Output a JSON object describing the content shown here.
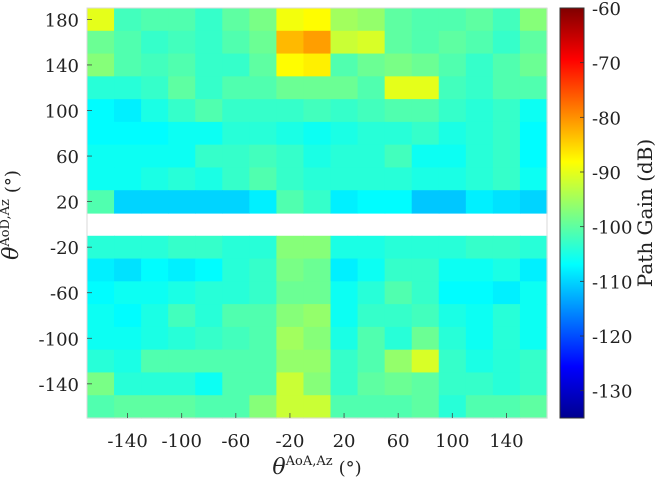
{
  "chart_data": {
    "type": "heatmap",
    "title": "",
    "xlabel": {
      "symbol": "θ",
      "superscript": "AoA,Az",
      "unit": "(°)"
    },
    "ylabel": {
      "symbol": "θ",
      "superscript": "AoD,Az",
      "unit": "(°)"
    },
    "x_ticks": [
      "-140",
      "-100",
      "-60",
      "-20",
      "20",
      "60",
      "100",
      "140"
    ],
    "y_ticks": [
      "180",
      "140",
      "100",
      "60",
      "20",
      "-20",
      "-60",
      "-100",
      "-140"
    ],
    "x_tick_values": [
      -140,
      -100,
      -60,
      -20,
      20,
      60,
      100,
      140
    ],
    "y_tick_values": [
      180,
      140,
      100,
      60,
      20,
      -20,
      -60,
      -100,
      -140
    ],
    "xlim": [
      -170,
      170
    ],
    "ylim": [
      -170,
      190
    ],
    "x_bin_width": 20,
    "x_bin_start": -170,
    "y_bin_width": 20,
    "y_bin_start": 190,
    "colormap": "jet",
    "colorbar": {
      "label": "Path Gain (dB)",
      "range": [
        -135,
        -60
      ],
      "ticks": [
        "-60",
        "-70",
        "-80",
        "-90",
        "-100",
        "-110",
        "-120",
        "-130"
      ],
      "tick_values": [
        -60,
        -70,
        -80,
        -90,
        -100,
        -110,
        -120,
        -130
      ]
    },
    "missing_rows_note": "",
    "rows": [
      [
        -90,
        -102,
        -101,
        -101,
        -103,
        -100,
        -98,
        -89,
        -88,
        -95,
        -96,
        -100,
        -101,
        -101,
        -100,
        -102,
        -97
      ],
      [
        -99,
        -101,
        -103,
        -102,
        -103,
        -101,
        -99,
        -83,
        -81,
        -92,
        -91,
        -100,
        -101,
        -100,
        -101,
        -103,
        -100
      ],
      [
        -97,
        -101,
        -102,
        -101,
        -103,
        -103,
        -100,
        -88,
        -87,
        -101,
        -99,
        -98,
        -99,
        -101,
        -103,
        -101,
        -99
      ],
      [
        -104,
        -104,
        -103,
        -100,
        -103,
        -101,
        -101,
        -99,
        -99,
        -99,
        -101,
        -90,
        -90,
        -102,
        -103,
        -101,
        -101
      ],
      [
        -107,
        -108,
        -105,
        -103,
        -101,
        -103,
        -103,
        -103,
        -102,
        -103,
        -102,
        -101,
        -101,
        -103,
        -104,
        -103,
        -106
      ],
      [
        -107,
        -107,
        -107,
        -106,
        -106,
        -104,
        -104,
        -105,
        -106,
        -105,
        -104,
        -104,
        -103,
        -105,
        -104,
        -103,
        -107
      ],
      [
        -106,
        -106,
        -106,
        -106,
        -103,
        -103,
        -102,
        -103,
        -105,
        -104,
        -104,
        -102,
        -106,
        -106,
        -104,
        -103,
        -107
      ],
      [
        -106,
        -106,
        -105,
        -104,
        -105,
        -103,
        -101,
        -103,
        -104,
        -104,
        -104,
        -104,
        -105,
        -105,
        -104,
        -103,
        -106
      ],
      [
        -101,
        -110,
        -110,
        -110,
        -110,
        -110,
        -108,
        -101,
        -103,
        -108,
        -107,
        -107,
        -111,
        -111,
        -108,
        -109,
        -110
      ],
      [
        null,
        null,
        null,
        null,
        null,
        null,
        null,
        null,
        null,
        null,
        null,
        null,
        null,
        null,
        null,
        null,
        null
      ],
      [
        -104,
        -104,
        -104,
        -103,
        -103,
        -104,
        -104,
        -97,
        -97,
        -105,
        -105,
        -104,
        -104,
        -104,
        -103,
        -103,
        -104
      ],
      [
        -108,
        -109,
        -107,
        -108,
        -107,
        -104,
        -103,
        -98,
        -99,
        -108,
        -106,
        -103,
        -103,
        -106,
        -106,
        -105,
        -108
      ],
      [
        -107,
        -106,
        -106,
        -105,
        -104,
        -104,
        -103,
        -99,
        -99,
        -106,
        -104,
        -101,
        -103,
        -107,
        -107,
        -108,
        -106
      ],
      [
        -106,
        -107,
        -105,
        -102,
        -104,
        -101,
        -101,
        -97,
        -96,
        -106,
        -103,
        -103,
        -102,
        -105,
        -106,
        -104,
        -106
      ],
      [
        -106,
        -106,
        -105,
        -104,
        -103,
        -102,
        -101,
        -95,
        -97,
        -105,
        -101,
        -104,
        -99,
        -104,
        -106,
        -104,
        -106
      ],
      [
        -104,
        -105,
        -101,
        -101,
        -101,
        -101,
        -101,
        -96,
        -96,
        -103,
        -101,
        -96,
        -91,
        -103,
        -105,
        -104,
        -103
      ],
      [
        -98,
        -104,
        -104,
        -104,
        -106,
        -101,
        -101,
        -92,
        -97,
        -103,
        -100,
        -99,
        -100,
        -103,
        -103,
        -104,
        -103
      ],
      [
        -101,
        -100,
        -100,
        -100,
        -101,
        -101,
        -97,
        -92,
        -92,
        -101,
        -101,
        -101,
        -100,
        -104,
        -101,
        -101,
        -100
      ]
    ]
  }
}
